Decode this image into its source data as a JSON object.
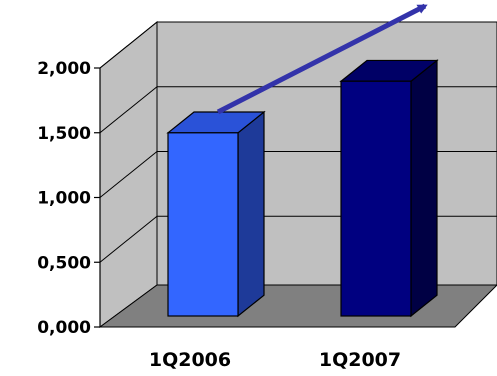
{
  "chart_data": {
    "type": "bar",
    "categories": [
      "1Q2006",
      "1Q2007"
    ],
    "values": [
      1.42,
      1.82
    ],
    "ylim": [
      0,
      2
    ],
    "yticks": [
      "0,000",
      "0,500",
      "1,000",
      "1,500",
      "2,000"
    ],
    "grid": true,
    "trend_arrow": "up",
    "colors": {
      "bar_1Q2006": "#3366ff",
      "bar_1Q2007": "#000080",
      "arrow": "#3333aa",
      "back_wall": "#c0c0c0",
      "floor": "#808080"
    }
  }
}
